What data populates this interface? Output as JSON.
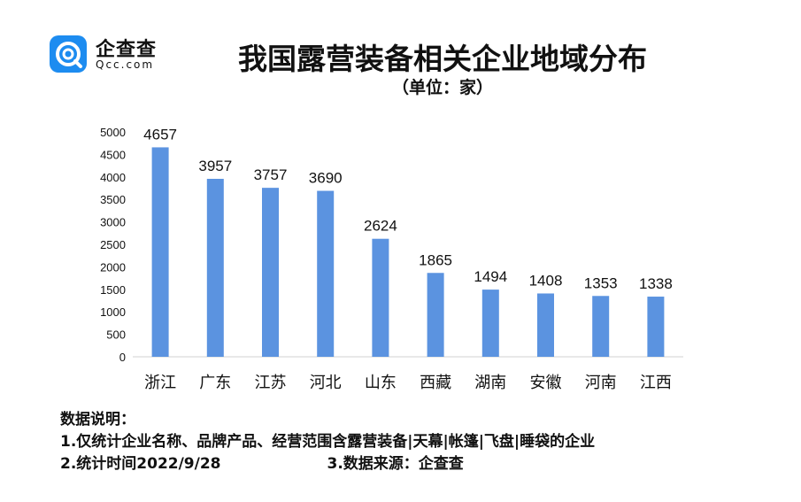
{
  "logo": {
    "brand_cn": "企查查",
    "brand_en": "Qcc.com",
    "color": "#1d8cf0"
  },
  "title": "我国露营装备相关企业地域分布",
  "subtitle": "（单位：家）",
  "chart_data": {
    "type": "bar",
    "categories": [
      "浙江",
      "广东",
      "江苏",
      "河北",
      "山东",
      "西藏",
      "湖南",
      "安徽",
      "河南",
      "江西"
    ],
    "values": [
      4657,
      3957,
      3757,
      3690,
      2624,
      1865,
      1494,
      1408,
      1353,
      1338
    ],
    "ylim": [
      0,
      5000
    ],
    "yticks": [
      0,
      500,
      1000,
      1500,
      2000,
      2500,
      3000,
      3500,
      4000,
      4500,
      5000
    ],
    "bar_color": "#5b93e0",
    "grid": false,
    "legend": "none"
  },
  "notes": {
    "heading": "数据说明：",
    "line1": "1.仅统计企业名称、品牌产品、经营范围含露营装备|天幕|帐篷|飞盘|睡袋的企业",
    "line2": "2.统计时间2022/9/28",
    "line3": "3.数据来源：企查查"
  }
}
